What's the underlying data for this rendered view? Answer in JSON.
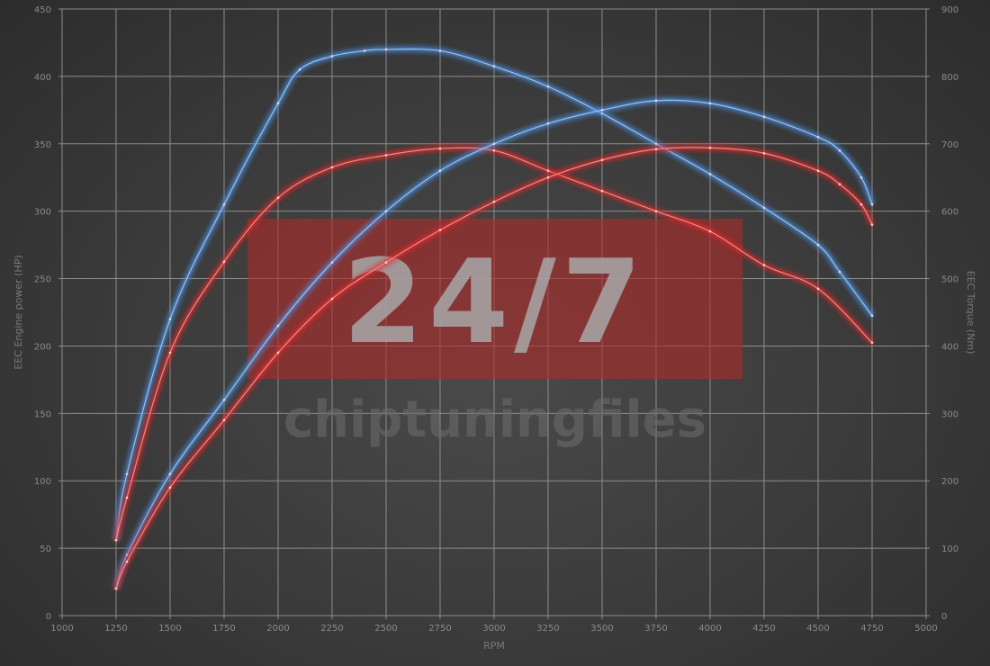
{
  "chart_data": {
    "type": "line",
    "xlabel": "RPM",
    "ylabel": "EEC Engine power (HP)",
    "y2label": "EEC Torque (Nm)",
    "xlim": [
      1000,
      5000
    ],
    "ylim": [
      0,
      450
    ],
    "y2lim": [
      0,
      900
    ],
    "xticks": [
      "1000",
      "1250",
      "1500",
      "1750",
      "2000",
      "2250",
      "2500",
      "2750",
      "3000",
      "3250",
      "3500",
      "3750",
      "4000",
      "4250",
      "4500",
      "4750",
      "5000"
    ],
    "yticks": [
      "0",
      "50",
      "100",
      "150",
      "200",
      "250",
      "300",
      "350",
      "400",
      "450"
    ],
    "y2ticks": [
      "0",
      "100",
      "200",
      "300",
      "400",
      "500",
      "600",
      "700",
      "800",
      "900"
    ],
    "grid": true,
    "watermark": {
      "big": "24/7",
      "small": "chiptuningfiles"
    },
    "series": [
      {
        "color": "#4a8fe0",
        "axis": "right",
        "x": [
          1250,
          1300,
          1500,
          1750,
          2000,
          2100,
          2250,
          2400,
          2500,
          2750,
          3000,
          3250,
          3500,
          3750,
          4000,
          4250,
          4500,
          4600,
          4750
        ],
        "y": [
          112,
          210,
          440,
          610,
          760,
          810,
          830,
          838,
          840,
          838,
          815,
          785,
          745,
          700,
          655,
          605,
          550,
          510,
          445
        ]
      },
      {
        "color": "#e02a2a",
        "axis": "right",
        "x": [
          1250,
          1300,
          1500,
          1750,
          2000,
          2250,
          2500,
          2750,
          3000,
          3250,
          3500,
          3750,
          4000,
          4250,
          4500,
          4750
        ],
        "y": [
          112,
          175,
          390,
          525,
          620,
          665,
          683,
          693,
          690,
          660,
          630,
          600,
          570,
          520,
          485,
          405
        ]
      },
      {
        "color": "#4a8fe0",
        "axis": "left",
        "x": [
          1250,
          1300,
          1500,
          1750,
          2000,
          2250,
          2500,
          2750,
          3000,
          3250,
          3500,
          3750,
          4000,
          4250,
          4500,
          4600,
          4700,
          4750
        ],
        "y": [
          20,
          45,
          105,
          160,
          215,
          262,
          300,
          330,
          350,
          365,
          375,
          382,
          380,
          370,
          355,
          345,
          325,
          305
        ]
      },
      {
        "color": "#e02a2a",
        "axis": "left",
        "x": [
          1250,
          1300,
          1500,
          1750,
          2000,
          2250,
          2500,
          2750,
          3000,
          3250,
          3500,
          3750,
          4000,
          4250,
          4500,
          4600,
          4700,
          4750
        ],
        "y": [
          20,
          40,
          95,
          145,
          195,
          235,
          262,
          286,
          307,
          325,
          338,
          346,
          347,
          343,
          330,
          320,
          305,
          290
        ]
      }
    ]
  }
}
